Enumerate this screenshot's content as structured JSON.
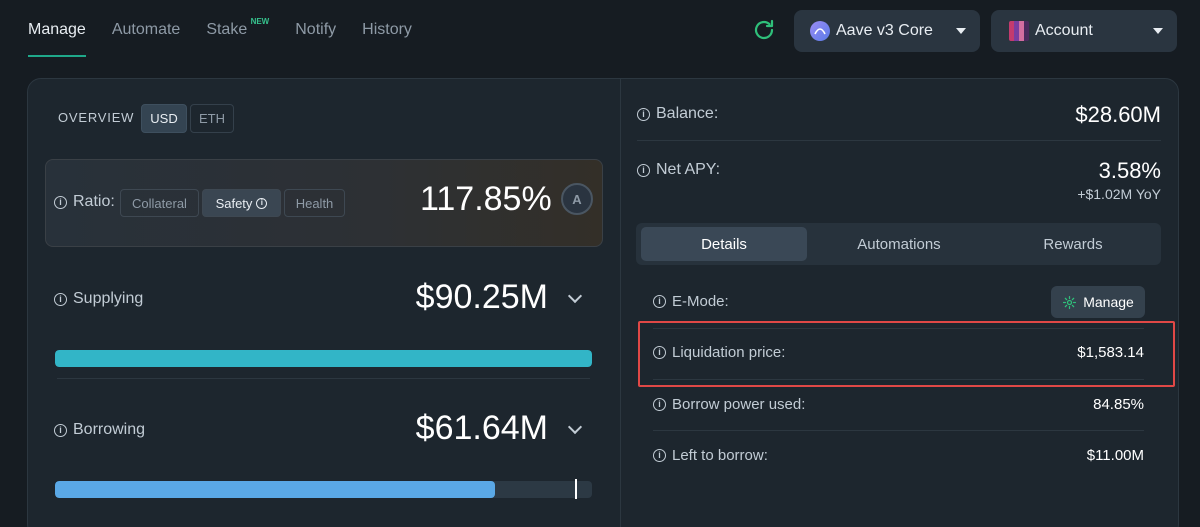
{
  "nav": {
    "items": [
      {
        "label": "Manage",
        "active": true
      },
      {
        "label": "Automate",
        "active": false
      },
      {
        "label": "Stake",
        "active": false,
        "badge": "NEW"
      },
      {
        "label": "Notify",
        "active": false
      },
      {
        "label": "History",
        "active": false
      }
    ]
  },
  "header": {
    "market_label": "Aave v3 Core",
    "account_label": "Account",
    "icons": [
      "refresh-icon",
      "aave-logo",
      "account-avatar",
      "caret-down-icon"
    ]
  },
  "overview": {
    "label": "OVERVIEW",
    "currency_options": [
      "USD",
      "ETH"
    ],
    "selected_currency": "USD"
  },
  "ratio": {
    "label": "Ratio:",
    "options": [
      "Collateral",
      "Safety",
      "Health"
    ],
    "selected": "Safety",
    "value": "117.85%"
  },
  "supplying": {
    "label": "Supplying",
    "value": "$90.25M",
    "bar_fraction": 1.0
  },
  "borrowing": {
    "label": "Borrowing",
    "value": "$61.64M",
    "bar_fraction": 0.82,
    "limit_fraction": 0.968
  },
  "summary": {
    "balance_label": "Balance:",
    "balance_value": "$28.60M",
    "net_apy_label": "Net APY:",
    "net_apy_value": "3.58%",
    "net_apy_sub": "+$1.02M YoY"
  },
  "detail_tabs": {
    "items": [
      "Details",
      "Automations",
      "Rewards"
    ],
    "selected": "Details"
  },
  "details": {
    "emode_label": "E-Mode:",
    "emode_button": "Manage",
    "liquidation_label": "Liquidation price:",
    "liquidation_value": "$1,583.14",
    "borrow_power_label": "Borrow power used:",
    "borrow_power_value": "84.85%",
    "left_to_borrow_label": "Left to borrow:",
    "left_to_borrow_value": "$11.00M"
  },
  "colors": {
    "accent": "#1fa88a",
    "supply_bar": "#32b5c7",
    "borrow_bar": "#5aa8e6",
    "highlight": "#e04846",
    "new_badge": "#36c28d"
  }
}
